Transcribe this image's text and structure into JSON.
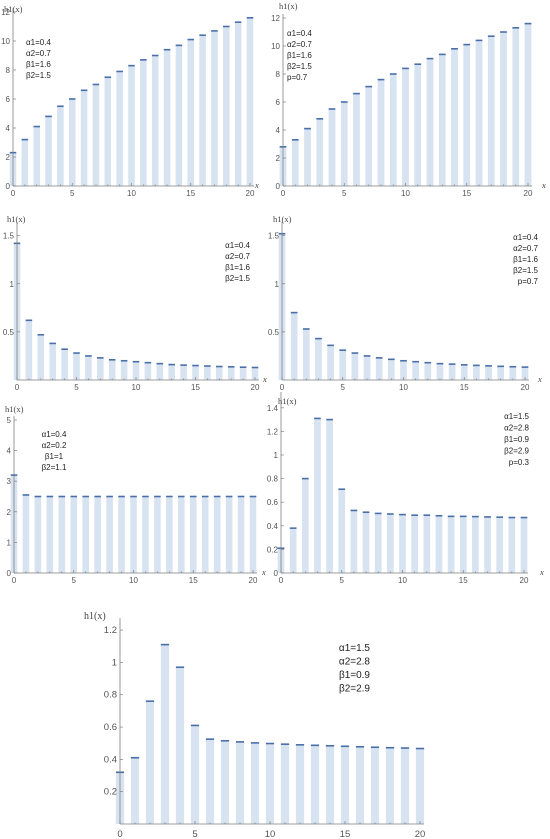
{
  "panel_annotations": [
    [
      "α1=0.4",
      "α2=0.7",
      "β1=1.6",
      "β2=1.5"
    ],
    [
      "α1=0.4",
      "α2=0.7",
      "β1=1.6",
      "β2=1.5",
      "p=0.7"
    ],
    [
      "α1=0.4",
      "α2=0.7",
      "β1=1.6",
      "β2=1.5"
    ],
    [
      "α1=0.4",
      "α2=0.7",
      "β1=1.6",
      "β2=1.5",
      "p=0.7"
    ],
    [
      "α1=0.4",
      "α2=0.2",
      "β1=1",
      "β2=1.1"
    ],
    [
      "α1=1.5",
      "α2=2.8",
      "β1=0.9",
      "β2=2.9",
      "p=0.3"
    ],
    [
      "α1=1.5",
      "α2=2.8",
      "β1=0.9",
      "β2=2.9"
    ]
  ],
  "chart_data": [
    {
      "type": "bar",
      "ylabel": "h1(x)",
      "xlabel": "x",
      "x": [
        0,
        1,
        2,
        3,
        4,
        5,
        6,
        7,
        8,
        9,
        10,
        11,
        12,
        13,
        14,
        15,
        16,
        17,
        18,
        19,
        20
      ],
      "values": [
        2.3,
        3.2,
        4.1,
        4.8,
        5.5,
        6.0,
        6.6,
        7.0,
        7.5,
        7.9,
        8.3,
        8.7,
        9.0,
        9.4,
        9.7,
        10.1,
        10.4,
        10.7,
        11.0,
        11.3,
        11.6
      ],
      "ylim": [
        0,
        12
      ],
      "yticks": [
        0,
        2,
        4,
        6,
        8,
        10,
        12
      ],
      "xticks": [
        0,
        5,
        10,
        15,
        20
      ]
    },
    {
      "type": "bar",
      "ylabel": "h1(x)",
      "xlabel": "x",
      "x": [
        0,
        1,
        2,
        3,
        4,
        5,
        6,
        7,
        8,
        9,
        10,
        11,
        12,
        13,
        14,
        15,
        16,
        17,
        18,
        19,
        20
      ],
      "values": [
        2.8,
        3.3,
        4.1,
        4.8,
        5.5,
        6.0,
        6.6,
        7.1,
        7.6,
        8.0,
        8.4,
        8.7,
        9.1,
        9.4,
        9.8,
        10.1,
        10.4,
        10.7,
        11.0,
        11.3,
        11.6
      ],
      "ylim": [
        0,
        12
      ],
      "yticks": [
        0,
        2,
        4,
        6,
        8,
        10,
        12
      ],
      "xticks": [
        0,
        5,
        10,
        15,
        20
      ]
    },
    {
      "type": "bar",
      "ylabel": "h1(x)",
      "xlabel": "x",
      "x": [
        0,
        1,
        2,
        3,
        4,
        5,
        6,
        7,
        8,
        9,
        10,
        11,
        12,
        13,
        14,
        15,
        16,
        17,
        18,
        19,
        20
      ],
      "values": [
        1.42,
        0.62,
        0.47,
        0.38,
        0.32,
        0.28,
        0.25,
        0.23,
        0.21,
        0.2,
        0.19,
        0.18,
        0.17,
        0.16,
        0.155,
        0.15,
        0.145,
        0.14,
        0.137,
        0.133,
        0.13
      ],
      "ylim": [
        0,
        1.6
      ],
      "yticks": [
        0.5,
        1.0,
        1.5
      ],
      "xticks": [
        0,
        5,
        10,
        15,
        20
      ]
    },
    {
      "type": "bar",
      "ylabel": "h1(x)",
      "xlabel": "x",
      "x": [
        0,
        1,
        2,
        3,
        4,
        5,
        6,
        7,
        8,
        9,
        10,
        11,
        12,
        13,
        14,
        15,
        16,
        17,
        18,
        19,
        20
      ],
      "values": [
        1.52,
        0.7,
        0.53,
        0.43,
        0.36,
        0.31,
        0.28,
        0.25,
        0.23,
        0.215,
        0.2,
        0.19,
        0.18,
        0.17,
        0.165,
        0.158,
        0.152,
        0.147,
        0.142,
        0.138,
        0.134
      ],
      "ylim": [
        0,
        1.6
      ],
      "yticks": [
        0.5,
        1.0,
        1.5
      ],
      "xticks": [
        0,
        5,
        10,
        15,
        20
      ]
    },
    {
      "type": "bar",
      "ylabel": "h1(x)",
      "xlabel": "x",
      "x": [
        0,
        1,
        2,
        3,
        4,
        5,
        6,
        7,
        8,
        9,
        10,
        11,
        12,
        13,
        14,
        15,
        16,
        17,
        18,
        19,
        20
      ],
      "values": [
        3.2,
        2.55,
        2.5,
        2.5,
        2.5,
        2.5,
        2.5,
        2.5,
        2.5,
        2.5,
        2.5,
        2.5,
        2.5,
        2.5,
        2.5,
        2.5,
        2.5,
        2.5,
        2.5,
        2.5,
        2.5
      ],
      "ylim": [
        0,
        5
      ],
      "yticks": [
        0,
        1,
        2,
        3,
        4,
        5
      ],
      "xticks": [
        0,
        5,
        10,
        15,
        20
      ]
    },
    {
      "type": "bar",
      "ylabel": "h1(x)",
      "xlabel": "x",
      "x": [
        0,
        1,
        2,
        3,
        4,
        5,
        6,
        7,
        8,
        9,
        10,
        11,
        12,
        13,
        14,
        15,
        16,
        17,
        18,
        19,
        20
      ],
      "values": [
        0.21,
        0.38,
        0.8,
        1.31,
        1.3,
        0.71,
        0.53,
        0.515,
        0.505,
        0.5,
        0.495,
        0.49,
        0.49,
        0.485,
        0.48,
        0.48,
        0.478,
        0.475,
        0.473,
        0.47,
        0.47
      ],
      "ylim": [
        0,
        1.5
      ],
      "yticks": [
        0,
        0.2,
        0.4,
        0.6,
        0.8,
        1.0,
        1.2,
        1.4
      ],
      "xticks": [
        0,
        5,
        10,
        15,
        20
      ]
    },
    {
      "type": "bar",
      "ylabel": "h1(x)",
      "xlabel": "",
      "x": [
        0,
        1,
        2,
        3,
        4,
        5,
        6,
        7,
        8,
        9,
        10,
        11,
        12,
        13,
        14,
        15,
        16,
        17,
        18,
        19,
        20
      ],
      "values": [
        0.32,
        0.41,
        0.76,
        1.11,
        0.97,
        0.61,
        0.525,
        0.515,
        0.508,
        0.502,
        0.498,
        0.494,
        0.49,
        0.487,
        0.484,
        0.481,
        0.478,
        0.475,
        0.472,
        0.47,
        0.467
      ],
      "ylim": [
        0,
        1.25
      ],
      "yticks": [
        0.2,
        0.4,
        0.6,
        0.8,
        1.0,
        1.2
      ],
      "xticks": [
        0,
        5,
        10,
        15,
        20
      ]
    }
  ]
}
